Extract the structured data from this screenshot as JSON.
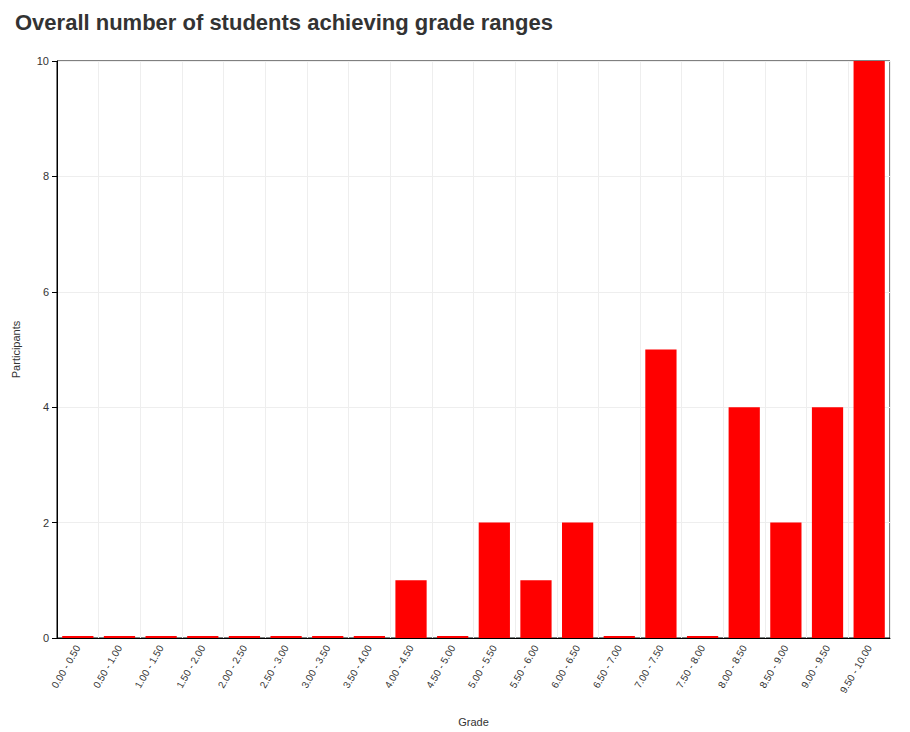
{
  "chart_data": {
    "type": "bar",
    "title": "Overall number of students achieving grade ranges",
    "x_label": "Grade",
    "y_label": "Participants",
    "categories": [
      "0.00 - 0.50",
      "0.50 - 1.00",
      "1.00 - 1.50",
      "1.50 - 2.00",
      "2.00 - 2.50",
      "2.50 - 3.00",
      "3.00 - 3.50",
      "3.50 - 4.00",
      "4.00 - 4.50",
      "4.50 - 5.00",
      "5.00 - 5.50",
      "5.50 - 6.00",
      "6.00 - 6.50",
      "6.50 - 7.00",
      "7.00 - 7.50",
      "7.50 - 8.00",
      "8.00 - 8.50",
      "8.50 - 9.00",
      "9.00 - 9.50",
      "9.50 - 10.00"
    ],
    "values": [
      0,
      0,
      0,
      0,
      0,
      0,
      0,
      0,
      1,
      0,
      2,
      1,
      2,
      0,
      5,
      0,
      4,
      2,
      4,
      10
    ],
    "color": "#ff0000",
    "ylim": [
      0,
      10
    ],
    "yticks": [
      0,
      2,
      4,
      6,
      8,
      10
    ],
    "grid": true
  }
}
